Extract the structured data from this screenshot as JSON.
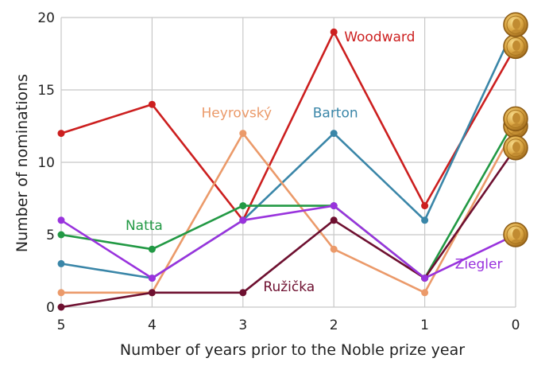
{
  "chart_data": {
    "type": "line",
    "xlabel": "Number of years prior to the Noble prize year",
    "ylabel": "Number of nominations",
    "x": [
      5,
      4,
      3,
      2,
      1,
      0
    ],
    "xlim": [
      5,
      0
    ],
    "ylim": [
      0,
      20
    ],
    "yticks": [
      0,
      5,
      10,
      15,
      20
    ],
    "grid": true,
    "series": [
      {
        "name": "Woodward",
        "color": "#cc1f1f",
        "values": [
          12,
          14,
          6,
          19,
          7,
          18
        ]
      },
      {
        "name": "Barton",
        "color": "#3a86a8",
        "values": [
          3,
          2,
          6,
          12,
          6,
          19.5
        ]
      },
      {
        "name": "Heyrovský",
        "color": "#eb9a6a",
        "values": [
          1,
          1,
          12,
          4,
          1,
          12.5
        ]
      },
      {
        "name": "Natta",
        "color": "#229944",
        "values": [
          5,
          4,
          7,
          7,
          2,
          13
        ]
      },
      {
        "name": "Ružička",
        "color": "#6e1030",
        "values": [
          0,
          1,
          1,
          6,
          2,
          11
        ]
      },
      {
        "name": "Ziegler",
        "color": "#9933dd",
        "values": [
          6,
          2,
          6,
          7,
          2,
          5
        ]
      }
    ],
    "medal_icon": "nobel-medal-icon"
  }
}
